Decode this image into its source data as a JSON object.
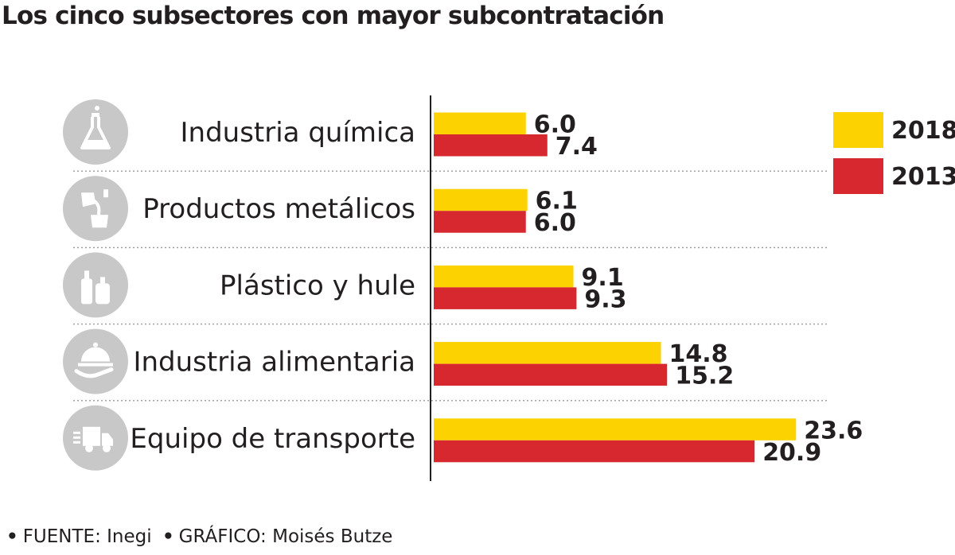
{
  "chart_data": {
    "type": "bar",
    "orientation": "horizontal",
    "title": "Los cinco subsectores con mayor subcontratación",
    "categories": [
      "Industria química",
      "Productos metálicos",
      "Plástico y hule",
      "Industria alimentaria",
      "Equipo de transporte"
    ],
    "category_icons": [
      "flask-icon",
      "metal-pour-icon",
      "bottles-icon",
      "food-tray-icon",
      "truck-icon"
    ],
    "series": [
      {
        "name": "2018",
        "color": "#fcd200",
        "values": [
          6.0,
          6.1,
          9.1,
          14.8,
          23.6
        ],
        "labels": [
          "6.0",
          "6.1",
          "9.1",
          "14.8",
          "23.6"
        ]
      },
      {
        "name": "2013",
        "color": "#d7282f",
        "values": [
          7.4,
          6.0,
          9.3,
          15.2,
          20.9
        ],
        "labels": [
          "7.4",
          "6.0",
          "9.3",
          "15.2",
          "20.9"
        ]
      }
    ],
    "xlim": [
      0,
      24
    ],
    "grid": false,
    "legend_position": "top-right"
  },
  "footer": {
    "source": "FUENTE: Inegi",
    "credit": "GRÁFICO: Moisés Butze",
    "bullet": "•"
  }
}
